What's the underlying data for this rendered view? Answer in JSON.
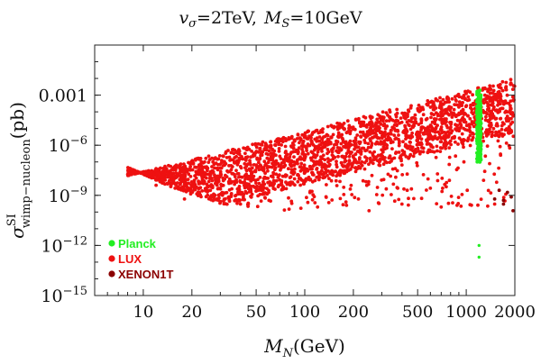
{
  "chart_data": {
    "type": "scatter",
    "title": {
      "v_sym": "v",
      "v_sub": "σ",
      "v_val": "=2TeV,",
      "m_sym": "M",
      "m_sub": "S",
      "m_val": "=10GeV"
    },
    "xlabel": {
      "sym": "M",
      "sub": "N",
      "unit": "(GeV)"
    },
    "ylabel": {
      "sym": "σ",
      "sup": "SI",
      "sub": "wimp−nucleon",
      "unit": "(pb)"
    },
    "x_scale": "log",
    "y_scale": "log",
    "xlim": [
      5,
      2000
    ],
    "ylim": [
      1e-15,
      1
    ],
    "x_ticks": [
      {
        "value": 10,
        "label": "10"
      },
      {
        "value": 20,
        "label": "20"
      },
      {
        "value": 50,
        "label": "50"
      },
      {
        "value": 100,
        "label": "100"
      },
      {
        "value": 200,
        "label": "200"
      },
      {
        "value": 500,
        "label": "500"
      },
      {
        "value": 1000,
        "label": "1000"
      },
      {
        "value": 2000,
        "label": "2000"
      }
    ],
    "y_ticks": [
      {
        "value": 0.001,
        "base": "0.001",
        "exp": ""
      },
      {
        "value": 1e-06,
        "base": "10",
        "exp": "−6"
      },
      {
        "value": 1e-09,
        "base": "10",
        "exp": "−9"
      },
      {
        "value": 1e-12,
        "base": "10",
        "exp": "−12"
      },
      {
        "value": 1e-15,
        "base": "10",
        "exp": "−15"
      }
    ],
    "legend": {
      "placement": "bottom-left",
      "entries": [
        {
          "label": "Planck",
          "color": "#22ee22"
        },
        {
          "label": "LUX",
          "color": "#ee1111"
        },
        {
          "label": "XENON1T",
          "color": "#8b0000"
        }
      ]
    },
    "series": [
      {
        "name": "LUX",
        "color": "#ee1111",
        "note_region": "dense band",
        "x_range": [
          8,
          2000
        ],
        "upper_boundary": [
          [
            8,
            1.5e-08
          ],
          [
            2000,
            0.01
          ]
        ],
        "lower_boundary": [
          [
            8,
            5e-08
          ],
          [
            15,
            3e-09
          ],
          [
            30,
            3e-10
          ],
          [
            100,
            1e-10
          ],
          [
            300,
            2e-10
          ],
          [
            1000,
            2e-10
          ],
          [
            2000,
            1e-10
          ]
        ],
        "sample_points": [
          [
            9,
            2e-08
          ],
          [
            12,
            4e-09
          ],
          [
            18,
            6e-10
          ],
          [
            25,
            1e-09
          ],
          [
            40,
            3e-10
          ],
          [
            60,
            5e-10
          ],
          [
            80,
            1.5e-10
          ],
          [
            120,
            2e-10
          ],
          [
            180,
            4e-10
          ],
          [
            250,
            1.2e-10
          ],
          [
            400,
            3e-10
          ],
          [
            700,
            2e-10
          ],
          [
            1500,
            3e-10
          ]
        ]
      },
      {
        "name": "XENON1T",
        "color": "#8b0000",
        "points": [
          [
            1500,
            6e-10
          ],
          [
            1700,
            3e-10
          ],
          [
            1900,
            8e-10
          ],
          [
            1600,
            2e-09
          ],
          [
            1800,
            1.5e-09
          ],
          [
            1700,
            5e-10
          ],
          [
            1950,
            1.2e-10
          ]
        ]
      },
      {
        "name": "Planck",
        "color": "#22ee22",
        "x_center": 1200,
        "band_y_range": [
          1e-07,
          0.002
        ],
        "points": [
          [
            1200,
            1e-12
          ],
          [
            1200,
            2e-13
          ]
        ]
      }
    ]
  }
}
